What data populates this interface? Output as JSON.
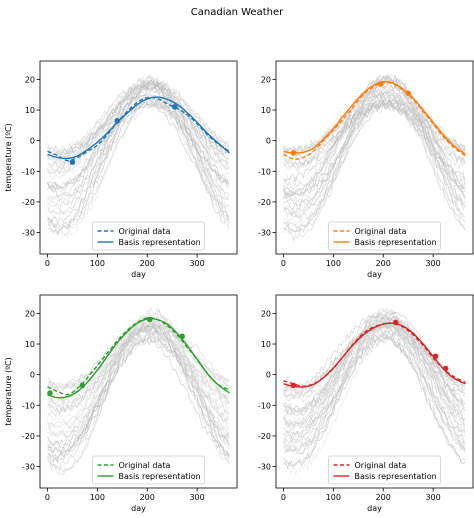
{
  "title": "Canadian Weather",
  "chart_data": [
    {
      "type": "line",
      "xlabel": "day",
      "ylabel": "temperature (ºC)",
      "xlim": [
        -15,
        380
      ],
      "ylim": [
        -37,
        26
      ],
      "xticks": [
        0,
        100,
        200,
        300
      ],
      "yticks": [
        -30,
        -20,
        -10,
        0,
        10,
        20
      ],
      "background_curves": "many light-gray temperature curves of other stations",
      "legend_placement": "lower center",
      "color": "#1f77b4",
      "series": [
        {
          "name": "Original data",
          "style": "dashed",
          "x": [
            0,
            20,
            40,
            60,
            80,
            100,
            120,
            140,
            160,
            180,
            200,
            220,
            240,
            260,
            280,
            300,
            320,
            340,
            365
          ],
          "y": [
            -3.5,
            -4.8,
            -6.5,
            -5.5,
            -3.5,
            -1.5,
            2.0,
            6.0,
            9.5,
            12.5,
            14.0,
            13.8,
            12.0,
            10.5,
            8.5,
            5.5,
            2.0,
            -0.8,
            -3.5
          ]
        },
        {
          "name": "Basis representation",
          "style": "solid",
          "x": [
            0,
            20,
            40,
            60,
            80,
            100,
            120,
            140,
            160,
            180,
            200,
            220,
            240,
            260,
            280,
            300,
            320,
            340,
            365
          ],
          "y": [
            -4.5,
            -5.5,
            -5.8,
            -5.0,
            -3.0,
            -0.5,
            2.5,
            6.0,
            9.0,
            11.8,
            13.6,
            14.2,
            13.5,
            11.8,
            9.2,
            6.0,
            2.5,
            -0.5,
            -4.0
          ]
        }
      ],
      "markers": {
        "x": [
          50,
          140,
          255
        ],
        "y": [
          -7.0,
          6.5,
          11.0
        ]
      }
    },
    {
      "type": "line",
      "xlabel": "day",
      "ylabel": "",
      "xlim": [
        -15,
        380
      ],
      "ylim": [
        -37,
        26
      ],
      "xticks": [
        0,
        100,
        200,
        300
      ],
      "yticks": [
        -30,
        -20,
        -10,
        0,
        10,
        20
      ],
      "legend_placement": "lower center",
      "color": "#ff7f0e",
      "series": [
        {
          "name": "Original data",
          "style": "dashed",
          "x": [
            0,
            20,
            40,
            60,
            80,
            100,
            120,
            140,
            160,
            180,
            200,
            220,
            240,
            260,
            280,
            300,
            320,
            340,
            365
          ],
          "y": [
            -4.5,
            -6.0,
            -5.5,
            -3.5,
            0.0,
            3.5,
            7.0,
            11.0,
            15.0,
            17.5,
            19.0,
            18.5,
            16.5,
            13.5,
            9.5,
            5.5,
            1.5,
            -2.0,
            -5.0
          ]
        },
        {
          "name": "Basis representation",
          "style": "solid",
          "x": [
            0,
            20,
            40,
            60,
            80,
            100,
            120,
            140,
            160,
            180,
            200,
            220,
            240,
            260,
            280,
            300,
            320,
            340,
            365
          ],
          "y": [
            -3.5,
            -4.0,
            -3.8,
            -2.5,
            0.5,
            4.0,
            8.0,
            12.0,
            15.5,
            18.0,
            19.2,
            18.8,
            16.8,
            13.8,
            10.0,
            6.0,
            2.0,
            -1.5,
            -4.5
          ]
        }
      ],
      "markers": {
        "x": [
          20,
          195,
          250
        ],
        "y": [
          -4.0,
          18.5,
          15.5
        ]
      }
    },
    {
      "type": "line",
      "xlabel": "day",
      "ylabel": "temperature (ºC)",
      "xlim": [
        -15,
        380
      ],
      "ylim": [
        -37,
        26
      ],
      "xticks": [
        0,
        100,
        200,
        300
      ],
      "yticks": [
        -30,
        -20,
        -10,
        0,
        10,
        20
      ],
      "legend_placement": "lower center",
      "color": "#2ca02c",
      "series": [
        {
          "name": "Original data",
          "style": "dashed",
          "x": [
            0,
            20,
            40,
            60,
            80,
            100,
            120,
            140,
            160,
            180,
            200,
            220,
            240,
            260,
            280,
            300,
            320,
            340,
            365
          ],
          "y": [
            -4.0,
            -5.5,
            -6.5,
            -4.5,
            -1.0,
            3.0,
            7.0,
            11.0,
            14.5,
            17.0,
            18.5,
            18.0,
            16.0,
            13.0,
            9.0,
            5.0,
            0.5,
            -3.0,
            -5.0
          ]
        },
        {
          "name": "Basis representation",
          "style": "solid",
          "x": [
            0,
            20,
            40,
            60,
            80,
            100,
            120,
            140,
            160,
            180,
            200,
            220,
            240,
            260,
            280,
            300,
            320,
            340,
            365
          ],
          "y": [
            -6.5,
            -7.5,
            -7.2,
            -5.5,
            -2.5,
            1.5,
            6.0,
            10.5,
            14.0,
            16.8,
            18.2,
            18.0,
            16.5,
            13.5,
            9.5,
            5.0,
            0.5,
            -3.0,
            -6.0
          ]
        }
      ],
      "markers": {
        "x": [
          5,
          70,
          205,
          270
        ],
        "y": [
          -6.0,
          -3.5,
          18.0,
          12.5
        ]
      }
    },
    {
      "type": "line",
      "xlabel": "day",
      "ylabel": "",
      "xlim": [
        -15,
        380
      ],
      "ylim": [
        -37,
        26
      ],
      "xticks": [
        0,
        100,
        200,
        300
      ],
      "yticks": [
        -30,
        -20,
        -10,
        0,
        10,
        20
      ],
      "legend_placement": "lower center",
      "color": "#d62728",
      "series": [
        {
          "name": "Original data",
          "style": "dashed",
          "x": [
            0,
            20,
            40,
            60,
            80,
            100,
            120,
            140,
            160,
            180,
            200,
            220,
            240,
            260,
            280,
            300,
            320,
            340,
            365
          ],
          "y": [
            -2.0,
            -3.0,
            -3.8,
            -3.0,
            -1.0,
            2.0,
            6.0,
            10.0,
            13.5,
            15.5,
            16.5,
            16.8,
            15.5,
            13.0,
            9.5,
            5.5,
            2.0,
            -0.5,
            -2.5
          ]
        },
        {
          "name": "Basis representation",
          "style": "solid",
          "x": [
            0,
            20,
            40,
            60,
            80,
            100,
            120,
            140,
            160,
            180,
            200,
            220,
            240,
            260,
            280,
            300,
            320,
            340,
            365
          ],
          "y": [
            -3.0,
            -3.8,
            -4.0,
            -3.2,
            -1.0,
            2.2,
            6.0,
            9.8,
            13.0,
            15.2,
            16.5,
            16.8,
            15.8,
            13.5,
            10.0,
            6.0,
            2.0,
            -1.0,
            -3.0
          ]
        }
      ],
      "markers": {
        "x": [
          20,
          225,
          305,
          325
        ],
        "y": [
          -3.5,
          17.0,
          6.0,
          2.0
        ]
      }
    }
  ]
}
